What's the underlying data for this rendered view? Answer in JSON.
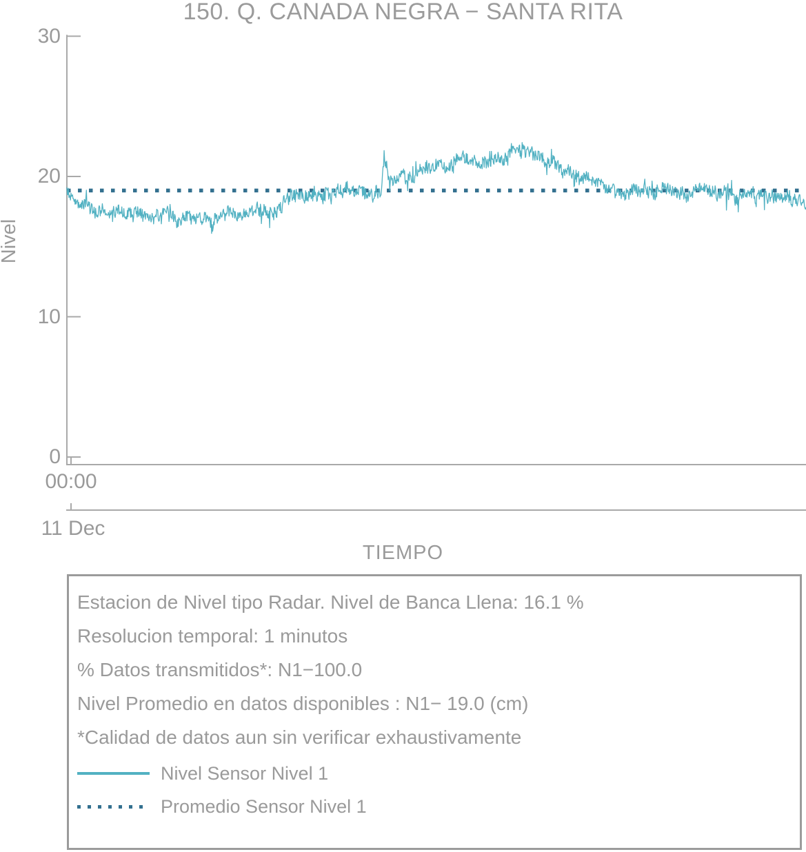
{
  "title": "150. Q. CANADA NEGRA − SANTA RITA",
  "colors": {
    "series_teal": "#52b1c2",
    "mean_blue": "#33708f",
    "axis_gray": "#a9a9a9",
    "text_gray": "#9a9a9a"
  },
  "chart_data": {
    "type": "line",
    "title": "150. Q. CANADA NEGRA − SANTA RITA",
    "xlabel": "TIEMPO",
    "ylabel": "Nivel",
    "ylim": [
      0,
      30
    ],
    "yticks": [
      0,
      10,
      20,
      30
    ],
    "ytick_labels_top_to_bottom": [
      "30",
      "20",
      "10",
      "0"
    ],
    "x_axis": {
      "time_tick_label": "00:00",
      "date_tick_label": "11 Dec",
      "span_hours": 24
    },
    "grid": false,
    "legend_position": "bottom-box",
    "series": [
      {
        "name": "Nivel Sensor Nivel 1",
        "color": "#52b1c2",
        "style": "solid",
        "sampling": "1 value per minute (1 minutos resolution)",
        "trend_anchor_hours": [
          0,
          0.3,
          0.75,
          1.3,
          1.9,
          2.5,
          3.2,
          3.9,
          4.5,
          5.2,
          5.9,
          6.4,
          6.8,
          6.95,
          7.1,
          7.7,
          8.4,
          9.0,
          9.6,
          10.05,
          10.22,
          10.3,
          10.42,
          10.6,
          11.0,
          11.3,
          11.6,
          12.15,
          12.55,
          13.0,
          13.35,
          13.85,
          14.2,
          14.57,
          14.85,
          15.2,
          15.55,
          16.0,
          16.4,
          16.85,
          17.3,
          17.75,
          18.2,
          18.65,
          19.1,
          19.55,
          20.0,
          20.45,
          20.9,
          21.35,
          21.8,
          22.25,
          22.7,
          23.15,
          23.6,
          24.0
        ],
        "trend_anchor_values": [
          18.9,
          18.3,
          17.9,
          17.6,
          17.3,
          17.2,
          17.0,
          16.9,
          17.0,
          17.2,
          17.3,
          17.5,
          17.6,
          18.0,
          18.6,
          18.7,
          18.9,
          19.0,
          18.9,
          18.7,
          18.9,
          21.5,
          20.4,
          20.0,
          19.9,
          20.3,
          20.6,
          20.9,
          21.0,
          21.4,
          20.7,
          21.2,
          21.3,
          22.2,
          21.8,
          21.6,
          21.1,
          20.6,
          20.1,
          19.8,
          19.3,
          19.1,
          18.9,
          19.2,
          18.9,
          19.2,
          18.8,
          19.1,
          19.0,
          18.7,
          18.4,
          18.6,
          18.5,
          18.7,
          18.4,
          18.1
        ],
        "noise_amplitude_cm": 0.45
      },
      {
        "name": "Promedio Sensor Nivel 1",
        "color": "#33708f",
        "style": "dotted",
        "value": 19.0
      }
    ]
  },
  "info_box": {
    "lines": [
      "Estacion de Nivel tipo Radar. Nivel de Banca Llena: 16.1 %",
      "Resolucion temporal: 1 minutos",
      "% Datos transmitidos*: N1−100.0",
      "Nivel Promedio en datos disponibles : N1− 19.0 (cm)",
      "*Calidad de datos aun sin verificar exhaustivamente"
    ],
    "legend": [
      {
        "label": "Nivel Sensor Nivel 1",
        "color": "#52b1c2",
        "style": "solid"
      },
      {
        "label": "Promedio Sensor Nivel 1",
        "color": "#33708f",
        "style": "dotted"
      }
    ]
  }
}
